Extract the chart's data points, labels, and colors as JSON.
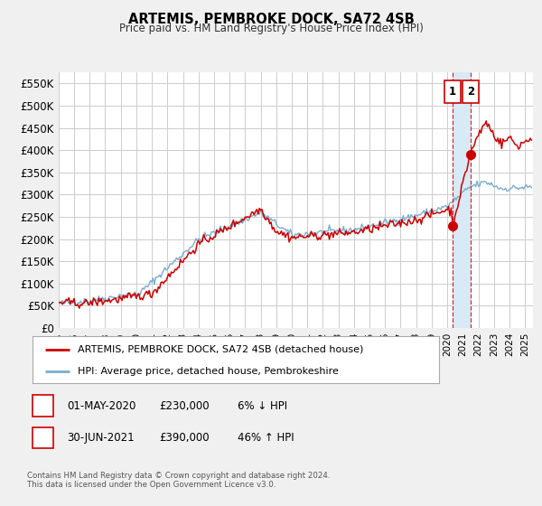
{
  "title": "ARTEMIS, PEMBROKE DOCK, SA72 4SB",
  "subtitle": "Price paid vs. HM Land Registry's House Price Index (HPI)",
  "red_label": "ARTEMIS, PEMBROKE DOCK, SA72 4SB (detached house)",
  "blue_label": "HPI: Average price, detached house, Pembrokeshire",
  "annotation1_date": "01-MAY-2020",
  "annotation1_price": "£230,000",
  "annotation1_pct": "6% ↓ HPI",
  "annotation2_date": "30-JUN-2021",
  "annotation2_price": "£390,000",
  "annotation2_pct": "46% ↑ HPI",
  "footnote": "Contains HM Land Registry data © Crown copyright and database right 2024.\nThis data is licensed under the Open Government Licence v3.0.",
  "red_color": "#cc0000",
  "blue_color": "#7aadcf",
  "shade_color": "#d8eaf5",
  "grid_color": "#cccccc",
  "bg_color": "#f0f0f0",
  "plot_bg": "#ffffff",
  "ylim": [
    0,
    575000
  ],
  "yticks": [
    0,
    50000,
    100000,
    150000,
    200000,
    250000,
    300000,
    350000,
    400000,
    450000,
    500000,
    550000
  ],
  "xlim_start": 1995.0,
  "xlim_end": 2025.5,
  "xticks": [
    1995,
    1996,
    1997,
    1998,
    1999,
    2000,
    2001,
    2002,
    2003,
    2004,
    2005,
    2006,
    2007,
    2008,
    2009,
    2010,
    2011,
    2012,
    2013,
    2014,
    2015,
    2016,
    2017,
    2018,
    2019,
    2020,
    2021,
    2022,
    2023,
    2024,
    2025
  ],
  "vline1_x": 2020.33,
  "vline2_x": 2021.5,
  "dot1_x": 2020.33,
  "dot1_y": 230000,
  "dot2_x": 2021.5,
  "dot2_y": 390000
}
